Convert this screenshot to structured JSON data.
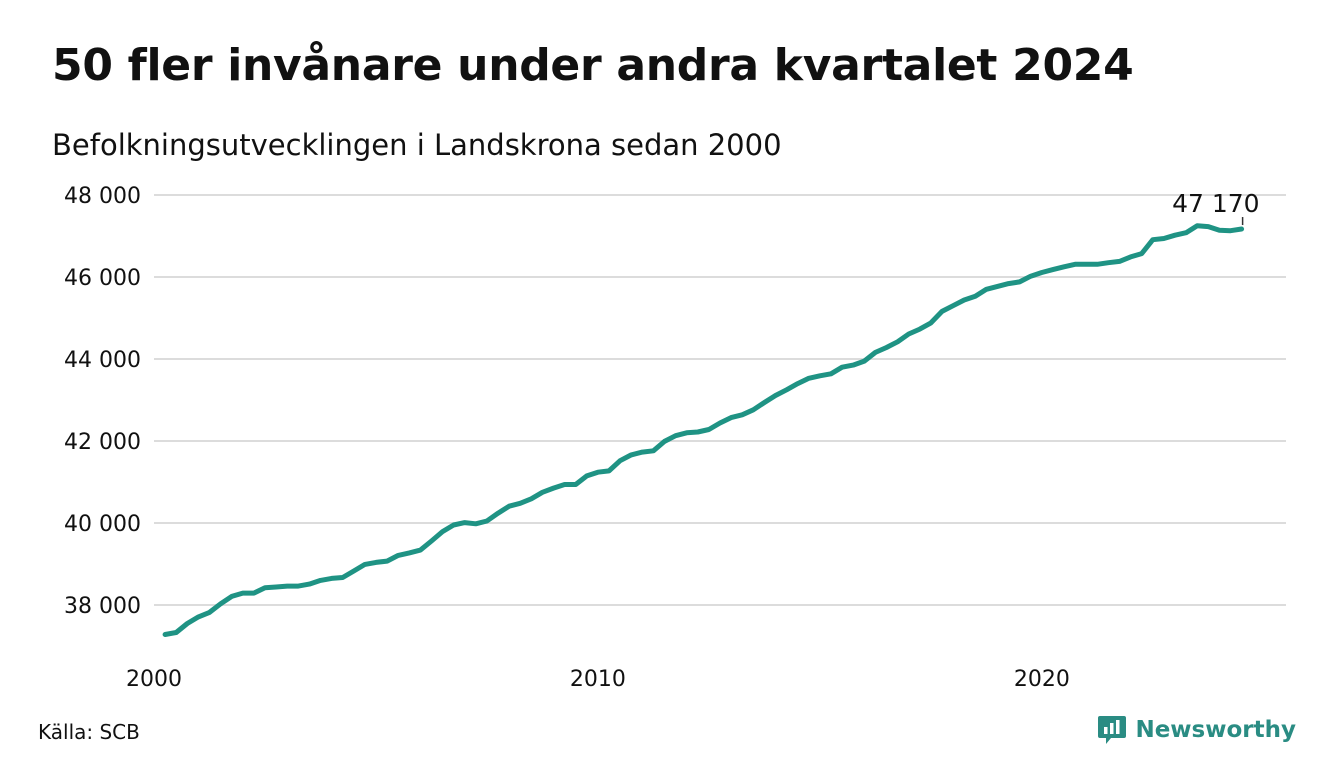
{
  "title": "50 fler invånare under andra kvartalet 2024",
  "subtitle": "Befolkningsutvecklingen i Landskrona sedan 2000",
  "source": "Källa: SCB",
  "brand": {
    "name": "Newsworthy",
    "icon": "newsworthy-logo-icon",
    "color": "#2a8c83"
  },
  "chart_data": {
    "type": "line",
    "title": "50 fler invånare under andra kvartalet 2024",
    "subtitle": "Befolkningsutvecklingen i Landskrona sedan 2000",
    "xlabel": "",
    "ylabel": "",
    "ylim": [
      37000,
      48000
    ],
    "xlim": [
      2000,
      2025.5
    ],
    "y_ticks": [
      38000,
      40000,
      42000,
      44000,
      46000,
      48000
    ],
    "y_tick_labels": [
      "38 000",
      "40 000",
      "42 000",
      "44 000",
      "46 000",
      "48 000"
    ],
    "x_ticks": [
      2000,
      2010,
      2020
    ],
    "x_tick_labels": [
      "2000",
      "2010",
      "2020"
    ],
    "grid": "horizontal",
    "line_color": "#1f9384",
    "end_label": "47 170",
    "series": [
      {
        "x": [
          2000.25,
          2000.5,
          2000.75,
          2001.0,
          2001.25,
          2001.5,
          2001.75,
          2002.0,
          2002.25,
          2002.5,
          2002.75,
          2003.0,
          2003.25,
          2003.5,
          2003.75,
          2004.0,
          2004.25,
          2004.5,
          2004.75,
          2005.0,
          2005.25,
          2005.5,
          2005.75,
          2006.0,
          2006.25,
          2006.5,
          2006.75,
          2007.0,
          2007.25,
          2007.5,
          2007.75,
          2008.0,
          2008.25,
          2008.5,
          2008.75,
          2009.0,
          2009.25,
          2009.5,
          2009.75,
          2010.0,
          2010.25,
          2010.5,
          2010.75,
          2011.0,
          2011.25,
          2011.5,
          2011.75,
          2012.0,
          2012.25,
          2012.5,
          2012.75,
          2013.0,
          2013.25,
          2013.5,
          2013.75,
          2014.0,
          2014.25,
          2014.5,
          2014.75,
          2015.0,
          2015.25,
          2015.5,
          2015.75,
          2016.0,
          2016.25,
          2016.5,
          2016.75,
          2017.0,
          2017.25,
          2017.5,
          2017.75,
          2018.0,
          2018.25,
          2018.5,
          2018.75,
          2019.0,
          2019.25,
          2019.5,
          2019.75,
          2020.0,
          2020.25,
          2020.5,
          2020.75,
          2021.0,
          2021.25,
          2021.5,
          2021.75,
          2022.0,
          2022.25,
          2022.5,
          2022.75,
          2023.0,
          2023.25,
          2023.5,
          2023.75,
          2024.0,
          2024.25,
          2024.5
        ],
        "y": [
          37280,
          37330,
          37550,
          37710,
          37820,
          38030,
          38210,
          38290,
          38290,
          38420,
          38440,
          38460,
          38460,
          38510,
          38600,
          38650,
          38670,
          38830,
          38990,
          39040,
          39070,
          39210,
          39270,
          39340,
          39560,
          39790,
          39950,
          40010,
          39980,
          40050,
          40240,
          40410,
          40480,
          40590,
          40750,
          40850,
          40940,
          40940,
          41150,
          41240,
          41270,
          41520,
          41660,
          41730,
          41760,
          41990,
          42130,
          42200,
          42220,
          42280,
          42440,
          42570,
          42640,
          42760,
          42940,
          43110,
          43250,
          43400,
          43530,
          43590,
          43640,
          43800,
          43850,
          43950,
          44160,
          44280,
          44420,
          44610,
          44730,
          44880,
          45160,
          45300,
          45440,
          45530,
          45700,
          45770,
          45840,
          45880,
          46020,
          46110,
          46180,
          46250,
          46310,
          46310,
          46310,
          46350,
          46380,
          46490,
          46570,
          46910,
          46940,
          47020,
          47080,
          47250,
          47230,
          47140,
          47130,
          47170
        ]
      }
    ]
  }
}
